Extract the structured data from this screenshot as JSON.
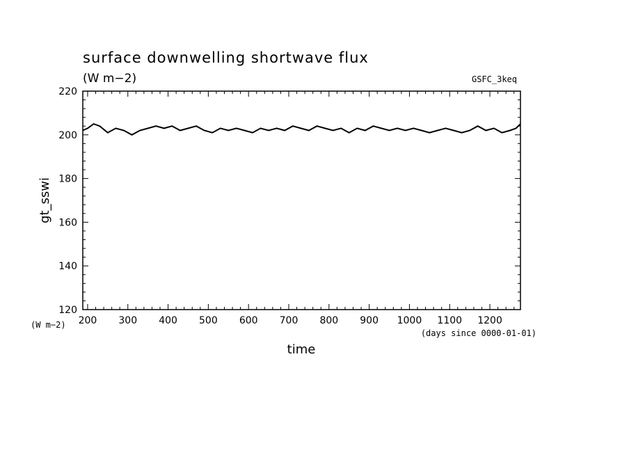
{
  "chart_data": {
    "type": "line",
    "title": "surface downwelling shortwave flux",
    "units": "(W m−2)",
    "dataset": "GSFC_3keq",
    "ylabel": "gt_sswi",
    "yunits": "(W m−2)",
    "xlabel": "time",
    "xunits": "(days since 0000-01-01)",
    "xlim": [
      188,
      1276
    ],
    "ylim": [
      120,
      220
    ],
    "xticks": [
      200,
      300,
      400,
      500,
      600,
      700,
      800,
      900,
      1000,
      1100,
      1200
    ],
    "yticks": [
      120,
      140,
      160,
      180,
      200,
      220
    ],
    "series": [
      {
        "x": [
          188,
          200,
          215,
          230,
          250,
          270,
          290,
          310,
          330,
          350,
          370,
          390,
          410,
          430,
          450,
          470,
          490,
          510,
          530,
          550,
          570,
          590,
          610,
          630,
          650,
          670,
          690,
          710,
          730,
          750,
          770,
          790,
          810,
          830,
          850,
          870,
          890,
          910,
          930,
          950,
          970,
          990,
          1010,
          1030,
          1050,
          1070,
          1090,
          1110,
          1130,
          1150,
          1170,
          1190,
          1210,
          1230,
          1250,
          1265,
          1276
        ],
        "values": [
          202,
          203,
          205,
          204,
          201,
          203,
          202,
          200,
          202,
          203,
          204,
          203,
          204,
          202,
          203,
          204,
          202,
          201,
          203,
          202,
          203,
          202,
          201,
          203,
          202,
          203,
          202,
          204,
          203,
          202,
          204,
          203,
          202,
          203,
          201,
          203,
          202,
          204,
          203,
          202,
          203,
          202,
          203,
          202,
          201,
          202,
          203,
          202,
          201,
          202,
          204,
          202,
          203,
          201,
          202,
          203,
          205
        ]
      }
    ]
  }
}
